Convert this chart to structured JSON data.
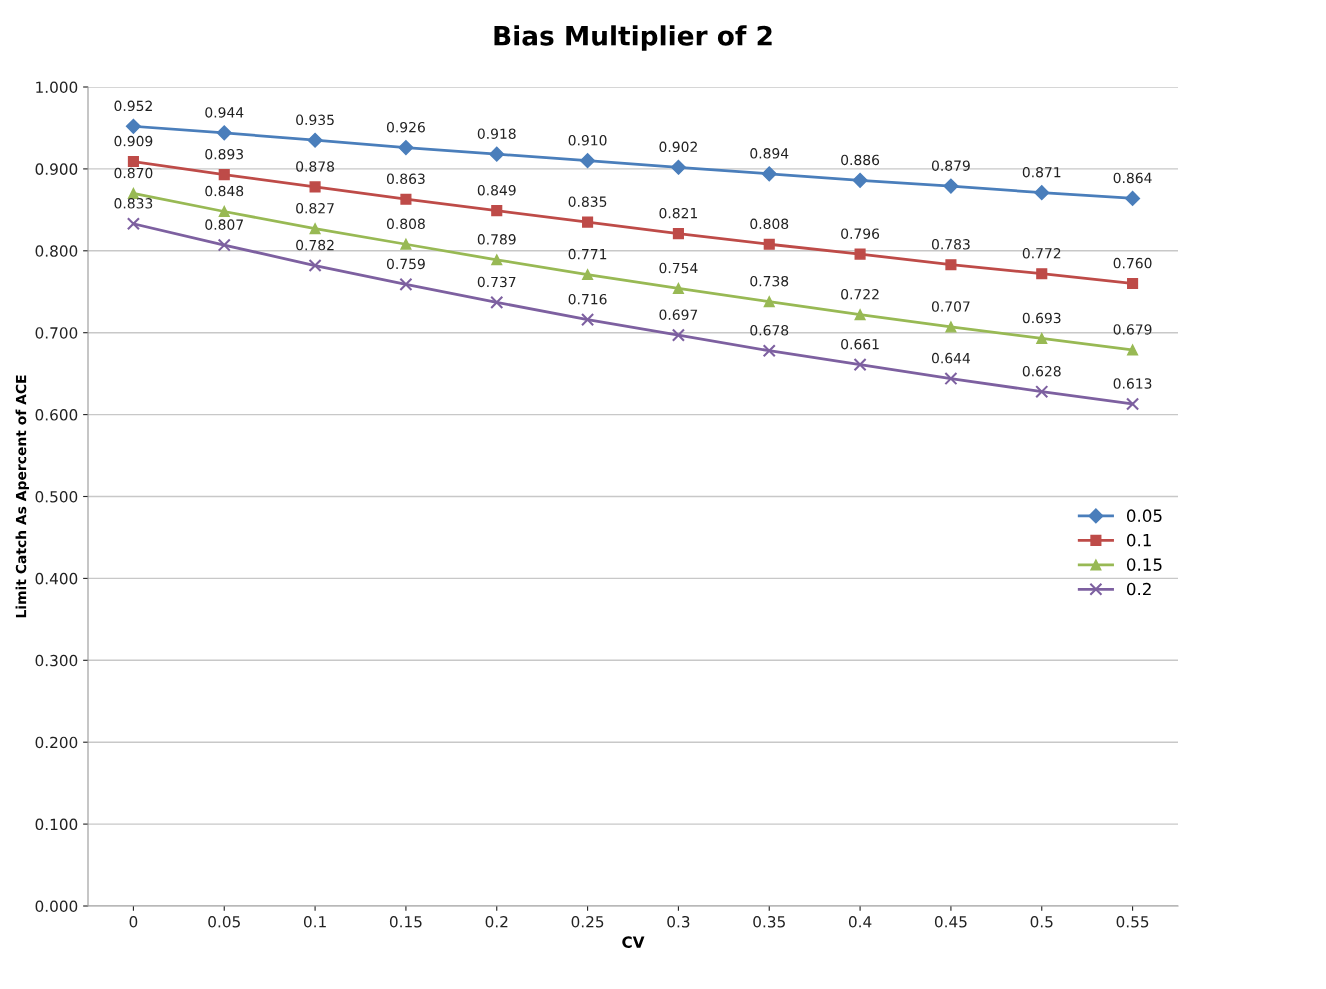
{
  "chart_data": {
    "type": "line",
    "title": "Bias Multiplier of 2",
    "xlabel": "CV",
    "ylabel": "Limit Catch As Apercent of ACE",
    "categories": [
      "0",
      "0.05",
      "0.1",
      "0.15",
      "0.2",
      "0.25",
      "0.3",
      "0.35",
      "0.4",
      "0.45",
      "0.5",
      "0.55"
    ],
    "series": [
      {
        "name": "0.05",
        "color": "#4a7ebb",
        "marker": "diamond",
        "values": [
          0.952,
          0.944,
          0.935,
          0.926,
          0.918,
          0.91,
          0.902,
          0.894,
          0.886,
          0.879,
          0.871,
          0.864
        ],
        "value_labels": [
          "0.952",
          "0.944",
          "0.935",
          "0.926",
          "0.918",
          "0.910",
          "0.902",
          "0.894",
          "0.886",
          "0.879",
          "0.871",
          "0.864"
        ]
      },
      {
        "name": "0.1",
        "color": "#be4b48",
        "marker": "square",
        "values": [
          0.909,
          0.893,
          0.878,
          0.863,
          0.849,
          0.835,
          0.821,
          0.808,
          0.796,
          0.783,
          0.772,
          0.76
        ],
        "value_labels": [
          "0.909",
          "0.893",
          "0.878",
          "0.863",
          "0.849",
          "0.835",
          "0.821",
          "0.808",
          "0.796",
          "0.783",
          "0.772",
          "0.760"
        ]
      },
      {
        "name": "0.15",
        "color": "#98b954",
        "marker": "triangle",
        "values": [
          0.87,
          0.848,
          0.827,
          0.808,
          0.789,
          0.771,
          0.754,
          0.738,
          0.722,
          0.707,
          0.693,
          0.679
        ],
        "value_labels": [
          "0.870",
          "0.848",
          "0.827",
          "0.808",
          "0.789",
          "0.771",
          "0.754",
          "0.738",
          "0.722",
          "0.707",
          "0.693",
          "0.679"
        ]
      },
      {
        "name": "0.2",
        "color": "#7d60a0",
        "marker": "cross",
        "values": [
          0.833,
          0.807,
          0.782,
          0.759,
          0.737,
          0.716,
          0.697,
          0.678,
          0.661,
          0.644,
          0.628,
          0.613
        ],
        "value_labels": [
          "0.833",
          "0.807",
          "0.782",
          "0.759",
          "0.737",
          "0.716",
          "0.697",
          "0.678",
          "0.661",
          "0.644",
          "0.628",
          "0.613"
        ]
      }
    ],
    "ylim": [
      0,
      1
    ],
    "yticks": [
      {
        "value": 0,
        "label": "0.000"
      },
      {
        "value": 0.1,
        "label": "0.100"
      },
      {
        "value": 0.2,
        "label": "0.200"
      },
      {
        "value": 0.3,
        "label": "0.300"
      },
      {
        "value": 0.4,
        "label": "0.400"
      },
      {
        "value": 0.5,
        "label": "0.500"
      },
      {
        "value": 0.6,
        "label": "0.600"
      },
      {
        "value": 0.7,
        "label": "0.700"
      },
      {
        "value": 0.8,
        "label": "0.800"
      },
      {
        "value": 0.9,
        "label": "0.900"
      },
      {
        "value": 1,
        "label": "1.000"
      }
    ],
    "grid": "y",
    "legend": "right",
    "line_style": "solid"
  }
}
